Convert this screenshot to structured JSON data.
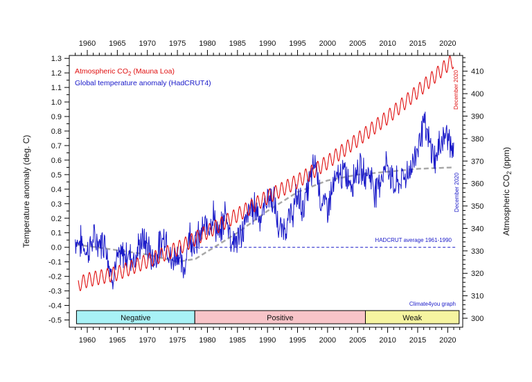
{
  "chart_data": {
    "type": "line",
    "x_axis": {
      "min": 1957,
      "max": 2022.5,
      "ticks": [
        1960,
        1965,
        1970,
        1975,
        1980,
        1985,
        1990,
        1995,
        2000,
        2005,
        2010,
        2015,
        2020
      ],
      "ticks_top": true
    },
    "y_left": {
      "label": "Temperature anomaly (deg. C)",
      "min": -0.55,
      "max": 1.32,
      "ticks": [
        "-0.5",
        "-0.4",
        "-0.3",
        "-0.2",
        "-0.1",
        "0.0",
        "0.1",
        "0.2",
        "0.3",
        "0.4",
        "0.5",
        "0.6",
        "0.7",
        "0.8",
        "0.9",
        "1.0",
        "1.1",
        "1.2",
        "1.3"
      ]
    },
    "y_right": {
      "label_main": "Atmospheric CO",
      "label_sub": "2",
      "label_end": " (ppm)",
      "min": 296.0,
      "max": 417.0,
      "ticks": [
        300,
        310,
        320,
        330,
        340,
        350,
        360,
        370,
        380,
        390,
        400,
        410
      ]
    },
    "legend": [
      {
        "text_main": "Atmospheric CO",
        "text_sub": "2",
        "text_end": " (Mauna Loa)",
        "color": "#e01010"
      },
      {
        "text_main": "Global temperature anomaly (HadCRUT4)",
        "text_sub": "",
        "text_end": "",
        "color": "#1818c8"
      }
    ],
    "annotations": {
      "baseline_label": "HADCRUT average 1961-1990",
      "baseline_value": 0.0,
      "december_red": "December 2020",
      "december_blue": "December 2020",
      "credit": "Climate4you graph"
    },
    "bands": [
      {
        "label": "Negative",
        "start": 1958.2,
        "end": 1977.9,
        "color": "#a8f2f6"
      },
      {
        "label": "Positive",
        "start": 1977.9,
        "end": 2006.3,
        "color": "#f8c4c8"
      },
      {
        "label": "Weak",
        "start": 2006.3,
        "end": 2021.9,
        "color": "#f6f4a0"
      }
    ],
    "series": [
      {
        "name": "Atmospheric CO2 (Mauna Loa)",
        "axis": "right",
        "color": "#e01010",
        "x": [
          1958.5,
          1960,
          1965,
          1970,
          1975,
          1980,
          1985,
          1990,
          1995,
          2000,
          2005,
          2010,
          2015,
          2020,
          2021
        ],
        "values": [
          315,
          317,
          320,
          325.5,
          331,
          338.5,
          346,
          354,
          361,
          369.5,
          379.5,
          389.5,
          401,
          413,
          414.5
        ],
        "seasonal_amplitude": 3.2
      },
      {
        "name": "Global temperature anomaly (HadCRUT4)",
        "axis": "left",
        "color": "#1818c8",
        "x": [
          1958,
          1959,
          1960,
          1961,
          1962,
          1963,
          1964,
          1965,
          1966,
          1967,
          1968,
          1969,
          1970,
          1971,
          1972,
          1973,
          1974,
          1975,
          1976,
          1977,
          1978,
          1979,
          1980,
          1981,
          1982,
          1983,
          1984,
          1985,
          1986,
          1987,
          1988,
          1989,
          1990,
          1991,
          1992,
          1993,
          1994,
          1995,
          1996,
          1997,
          1998,
          1999,
          2000,
          2001,
          2002,
          2003,
          2004,
          2005,
          2006,
          2007,
          2008,
          2009,
          2010,
          2011,
          2012,
          2013,
          2014,
          2015,
          2016,
          2017,
          2018,
          2019,
          2020,
          2021
        ],
        "values": [
          0.05,
          0.03,
          -0.03,
          0.05,
          0.03,
          0.05,
          -0.2,
          -0.1,
          -0.05,
          -0.05,
          -0.08,
          0.05,
          0.02,
          -0.1,
          0.0,
          0.1,
          -0.12,
          -0.02,
          -0.18,
          0.1,
          0.02,
          0.1,
          0.15,
          0.22,
          0.05,
          0.25,
          0.05,
          0.05,
          0.12,
          0.25,
          0.28,
          0.2,
          0.36,
          0.32,
          0.1,
          0.15,
          0.22,
          0.35,
          0.27,
          0.45,
          0.6,
          0.3,
          0.28,
          0.42,
          0.5,
          0.5,
          0.45,
          0.55,
          0.5,
          0.52,
          0.38,
          0.5,
          0.58,
          0.42,
          0.45,
          0.5,
          0.55,
          0.7,
          0.85,
          0.7,
          0.6,
          0.75,
          0.78,
          0.62
        ],
        "noise": 0.09
      },
      {
        "name": "Trend",
        "axis": "left",
        "color": "#a8a8a8",
        "dashed": true,
        "x": [
          1958,
          1965,
          1970,
          1975,
          1978,
          1985,
          1990,
          1995,
          2000,
          2005,
          2010,
          2015,
          2021
        ],
        "values": [
          0.02,
          -0.02,
          -0.05,
          -0.1,
          -0.08,
          0.1,
          0.25,
          0.38,
          0.46,
          0.5,
          0.52,
          0.54,
          0.55
        ]
      }
    ]
  }
}
